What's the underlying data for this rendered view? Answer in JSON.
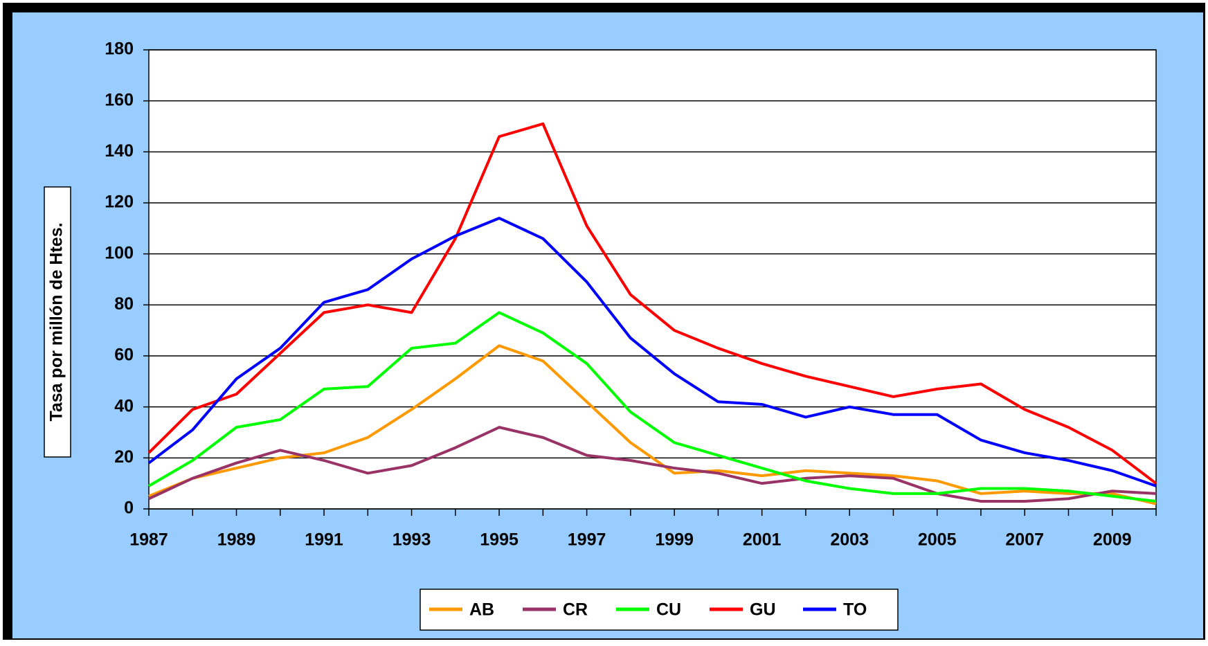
{
  "chart_data": {
    "type": "line",
    "y_label": "Tasa por millón de Htes.",
    "categories": [
      "1987",
      null,
      "1989",
      null,
      "1991",
      null,
      "1993",
      null,
      "1995",
      null,
      "1997",
      null,
      "1999",
      null,
      "2001",
      null,
      "2003",
      null,
      "2005",
      null,
      "2007",
      null,
      "2009",
      null
    ],
    "ylim": [
      0,
      180
    ],
    "yticks": [
      0,
      20,
      40,
      60,
      80,
      100,
      120,
      140,
      160,
      180
    ],
    "grid": true,
    "legend": "bottom",
    "series": [
      {
        "name": "AB",
        "color": "#ff9900",
        "values": [
          5,
          12,
          16,
          20,
          22,
          28,
          39,
          51,
          64,
          58,
          42,
          26,
          14,
          15,
          13,
          15,
          14,
          13,
          11,
          6,
          7,
          6,
          6,
          2
        ]
      },
      {
        "name": "CR",
        "color": "#993366",
        "values": [
          4,
          12,
          18,
          23,
          19,
          14,
          17,
          24,
          32,
          28,
          21,
          19,
          16,
          14,
          10,
          12,
          13,
          12,
          6,
          3,
          3,
          4,
          7,
          6
        ]
      },
      {
        "name": "CU",
        "color": "#00ff00",
        "values": [
          9,
          19,
          32,
          35,
          47,
          48,
          63,
          65,
          77,
          69,
          57,
          38,
          26,
          21,
          16,
          11,
          8,
          6,
          6,
          8,
          8,
          7,
          5,
          3
        ]
      },
      {
        "name": "GU",
        "color": "#ff0000",
        "values": [
          22,
          39,
          45,
          61,
          77,
          80,
          77,
          106,
          146,
          151,
          111,
          84,
          70,
          63,
          57,
          52,
          48,
          44,
          47,
          49,
          39,
          32,
          23,
          10
        ]
      },
      {
        "name": "TO",
        "color": "#0000ff",
        "values": [
          18,
          31,
          51,
          63,
          81,
          86,
          98,
          107,
          114,
          106,
          89,
          67,
          53,
          42,
          41,
          36,
          40,
          37,
          37,
          27,
          22,
          19,
          15,
          9
        ]
      }
    ]
  }
}
